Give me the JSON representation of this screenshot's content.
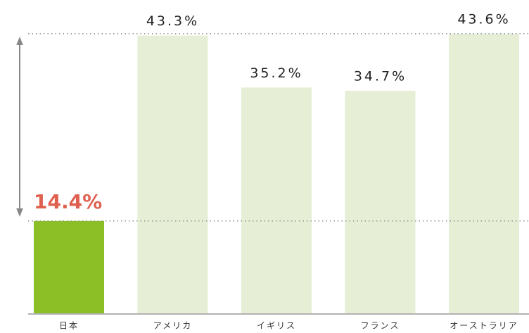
{
  "chart_data": {
    "type": "bar",
    "categories": [
      "日本",
      "アメリカ",
      "イギリス",
      "フランス",
      "オーストラリア"
    ],
    "values": [
      14.4,
      43.3,
      35.2,
      34.7,
      43.6
    ],
    "value_labels": [
      "14.4%",
      "43.3%",
      "35.2%",
      "34.7%",
      "43.6%"
    ],
    "colors": [
      "#8cbf26",
      "#e6efd6",
      "#e6efd6",
      "#e6efd6",
      "#e6efd6"
    ]
  }
}
